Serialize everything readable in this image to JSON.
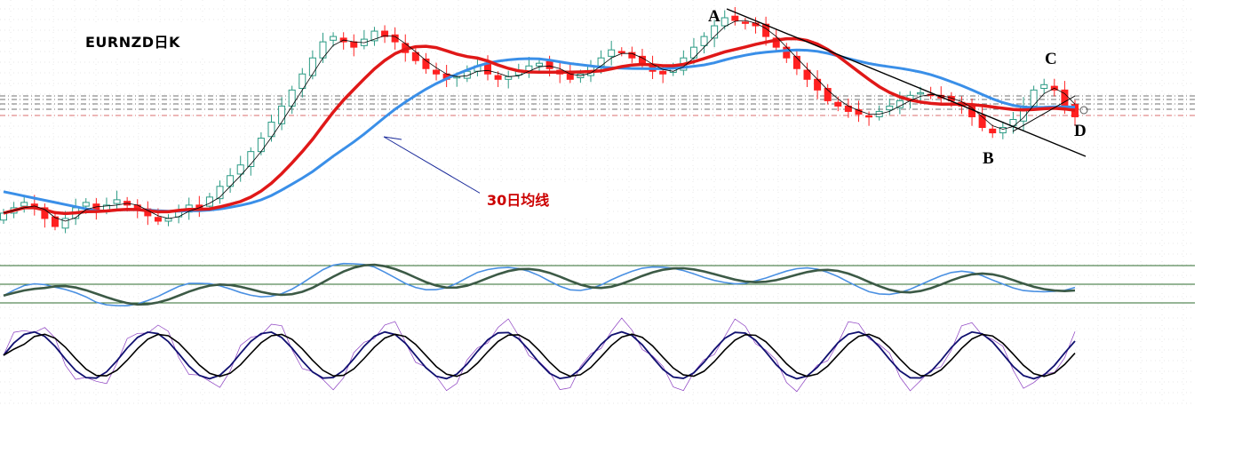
{
  "chart_title": "EURNZD日K",
  "annotation_ma": "30日均线",
  "points": {
    "A": "A",
    "B": "B",
    "C": "C",
    "D": "D"
  },
  "colors": {
    "up_candle": "#2a9a84",
    "down_candle": "#ff2020",
    "ma_red": "#e01818",
    "ma_blue": "#3a8fe8",
    "ma_thin": "#000000",
    "trendline": "#000000",
    "ind_light_blue": "#4a90e2",
    "ind_dark_green": "#3c5a46",
    "ind_navy": "#101070",
    "ind_purple": "#8a3cc0",
    "ind_black": "#000000",
    "annotation_arrow": "#1a2a9a"
  },
  "chart_data": {
    "type": "candlestick",
    "panels": [
      "price",
      "oscillator-1",
      "oscillator-2"
    ],
    "series": [
      {
        "name": "30日均线",
        "role": "moving-average",
        "color": "#e01818"
      },
      {
        "name": "",
        "role": "moving-average",
        "color": "#3a8fe8"
      },
      {
        "name": "",
        "role": "moving-average",
        "color": "#000000"
      }
    ],
    "closes": [
      20,
      22,
      24,
      22,
      18,
      15,
      18,
      22,
      24,
      21,
      23,
      25,
      23,
      21,
      19,
      17,
      18,
      21,
      23,
      22,
      26,
      30,
      34,
      38,
      43,
      48,
      54,
      60,
      66,
      72,
      78,
      84,
      86,
      84,
      82,
      85,
      88,
      86,
      84,
      80,
      77,
      74,
      72,
      70,
      71,
      73,
      75,
      72,
      70,
      71,
      73,
      75,
      76,
      74,
      72,
      70,
      72,
      75,
      78,
      81,
      80,
      78,
      76,
      73,
      72,
      74,
      78,
      82,
      86,
      90,
      93,
      92,
      91,
      90,
      86,
      82,
      78,
      74,
      70,
      66,
      62,
      60,
      58,
      57,
      56,
      58,
      60,
      62,
      64,
      65,
      64,
      63,
      62,
      60,
      56,
      52,
      50,
      52,
      55,
      60,
      66,
      68,
      66,
      60,
      56
    ],
    "annotations": [
      {
        "label": "A",
        "note": "swing high / trendline start"
      },
      {
        "label": "B",
        "note": "swing low"
      },
      {
        "label": "C",
        "note": "lower high"
      },
      {
        "label": "D",
        "note": "current bar"
      },
      {
        "label": "30日均线",
        "note": "arrow pointing to red moving average"
      }
    ],
    "legend": "none",
    "grid": true
  }
}
